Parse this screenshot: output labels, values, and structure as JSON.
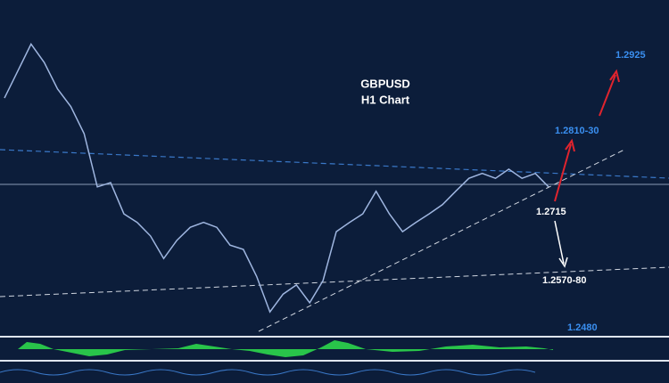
{
  "chart_data": {
    "type": "line",
    "title": "GBPUSD",
    "subtitle": "H1 Chart",
    "ylim": [
      1.239,
      1.3015
    ],
    "series": [
      {
        "name": "GBPUSD",
        "color": "#9fb6e0",
        "values": [
          1.2855,
          1.2899,
          1.2943,
          1.2913,
          1.287,
          1.2841,
          1.2797,
          1.271,
          1.2717,
          1.2666,
          1.2652,
          1.263,
          1.2593,
          1.2623,
          1.2644,
          1.2652,
          1.2644,
          1.2615,
          1.2608,
          1.2564,
          1.2506,
          1.2535,
          1.255,
          1.2521,
          1.2557,
          1.2637,
          1.2652,
          1.2666,
          1.2703,
          1.2666,
          1.2637,
          1.2652,
          1.2666,
          1.2681,
          1.2703,
          1.2724,
          1.2732,
          1.2724,
          1.2739,
          1.2724,
          1.2732,
          1.271
        ]
      }
    ],
    "annotations": [
      {
        "text": "1.2925",
        "color": "#3a8ff0"
      },
      {
        "text": "1.2810-30",
        "color": "#3a8ff0"
      },
      {
        "text": "1.2715",
        "color": "#ffffff"
      },
      {
        "text": "1.2570-80",
        "color": "#ffffff"
      },
      {
        "text": "1.2480",
        "color": "#3a8ff0"
      }
    ]
  }
}
